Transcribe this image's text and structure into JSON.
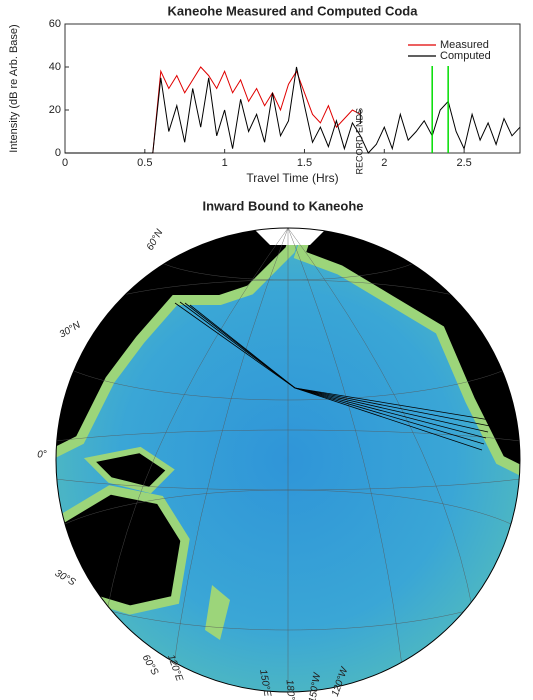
{
  "chart_data": [
    {
      "type": "line",
      "title": "Kaneohe Measured and Computed Coda",
      "x_label": "Travel Time (Hrs)",
      "y_label": "Intensity (dB re Arb. Base)",
      "x": [
        0,
        0.05,
        0.1,
        0.15,
        0.2,
        0.25,
        0.3,
        0.35,
        0.4,
        0.45,
        0.5,
        0.55,
        0.6,
        0.65,
        0.7,
        0.75,
        0.8,
        0.85,
        0.9,
        0.95,
        1.0,
        1.05,
        1.1,
        1.15,
        1.2,
        1.25,
        1.3,
        1.35,
        1.4,
        1.45,
        1.5,
        1.55,
        1.6,
        1.65,
        1.7,
        1.75,
        1.8,
        1.85,
        1.9,
        1.95,
        2.0,
        2.05,
        2.1,
        2.15,
        2.2,
        2.25,
        2.3,
        2.35,
        2.4,
        2.45,
        2.5,
        2.55,
        2.6,
        2.65,
        2.7,
        2.75,
        2.8,
        2.85
      ],
      "series": [
        {
          "name": "Measured",
          "color": "#e00000",
          "values": [
            0,
            0,
            0,
            0,
            0,
            0,
            0,
            0,
            0,
            0,
            0,
            0,
            38,
            30,
            36,
            28,
            34,
            40,
            36,
            30,
            38,
            28,
            34,
            24,
            30,
            22,
            28,
            20,
            32,
            38,
            28,
            18,
            14,
            22,
            12,
            16,
            20,
            18,
            null,
            null,
            null,
            null,
            null,
            null,
            null,
            null,
            null,
            null,
            null,
            null,
            null,
            null,
            null,
            null,
            null,
            null,
            null,
            null
          ]
        },
        {
          "name": "Computed",
          "color": "#000000",
          "values": [
            0,
            0,
            0,
            0,
            0,
            0,
            0,
            0,
            0,
            0,
            0,
            0,
            35,
            10,
            22,
            5,
            30,
            12,
            35,
            8,
            20,
            2,
            25,
            10,
            18,
            5,
            28,
            8,
            15,
            40,
            22,
            5,
            12,
            3,
            15,
            2,
            14,
            8,
            0,
            4,
            12,
            2,
            18,
            6,
            10,
            15,
            8,
            20,
            24,
            10,
            2,
            18,
            6,
            14,
            4,
            16,
            8,
            12
          ]
        }
      ],
      "xlim": [
        0,
        2.85
      ],
      "ylim": [
        0,
        60
      ],
      "xticks": [
        0,
        0.5,
        1,
        1.5,
        2,
        2.5
      ],
      "yticks": [
        0,
        20,
        40,
        60
      ],
      "annotation": {
        "text": "RECORD ENDS",
        "x": 1.85
      },
      "vlines": {
        "color": "#00dd00",
        "x": [
          2.3,
          2.4
        ]
      },
      "legend": "upper right"
    },
    {
      "type": "map",
      "title": "Inward Bound to Kaneohe",
      "graticule_labels": [
        "60°N",
        "30°N",
        "0°",
        "30°S",
        "60°S",
        "120°E",
        "150°E",
        "180°",
        "150°W",
        "120°W"
      ]
    }
  ]
}
